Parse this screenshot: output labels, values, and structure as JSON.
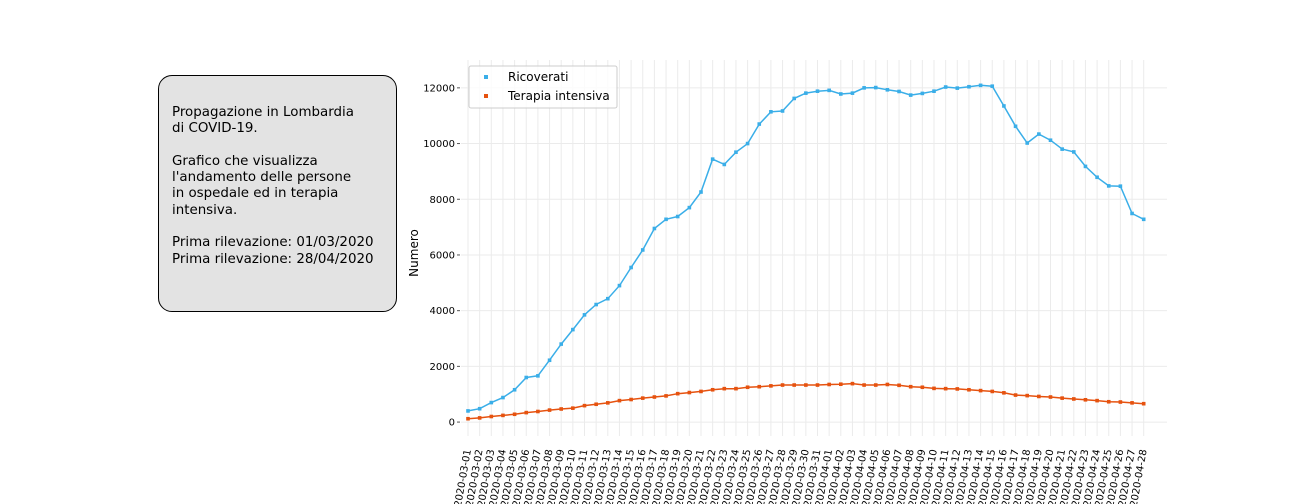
{
  "info": {
    "title": "Propagazione in Lombardia\ndi COVID-19.",
    "description": "Grafico che visualizza\nl'andamento delle persone\nin ospedale ed in terapia\nintensiva.",
    "first_survey": "Prima rilevazione: 01/03/2020",
    "last_survey": "Prima rilevazione: 28/04/2020"
  },
  "chart_data": {
    "type": "line",
    "ylabel": "Numero",
    "xlabel": "",
    "ylim": [
      -500,
      13000
    ],
    "yticks": [
      0,
      2000,
      4000,
      6000,
      8000,
      10000,
      12000
    ],
    "grid": "vertical",
    "legend_position": "top-left",
    "x": [
      "2020-03-01",
      "2020-03-02",
      "2020-03-03",
      "2020-03-04",
      "2020-03-05",
      "2020-03-06",
      "2020-03-07",
      "2020-03-08",
      "2020-03-09",
      "2020-03-10",
      "2020-03-11",
      "2020-03-12",
      "2020-03-13",
      "2020-03-14",
      "2020-03-15",
      "2020-03-16",
      "2020-03-17",
      "2020-03-18",
      "2020-03-19",
      "2020-03-20",
      "2020-03-21",
      "2020-03-22",
      "2020-03-23",
      "2020-03-24",
      "2020-03-25",
      "2020-03-26",
      "2020-03-27",
      "2020-03-28",
      "2020-03-29",
      "2020-03-30",
      "2020-03-31",
      "2020-04-01",
      "2020-04-02",
      "2020-04-03",
      "2020-04-04",
      "2020-04-05",
      "2020-04-06",
      "2020-04-07",
      "2020-04-08",
      "2020-04-09",
      "2020-04-10",
      "2020-04-11",
      "2020-04-12",
      "2020-04-13",
      "2020-04-14",
      "2020-04-15",
      "2020-04-16",
      "2020-04-17",
      "2020-04-18",
      "2020-04-19",
      "2020-04-20",
      "2020-04-21",
      "2020-04-22",
      "2020-04-23",
      "2020-04-24",
      "2020-04-25",
      "2020-04-26",
      "2020-04-27",
      "2020-04-28"
    ],
    "series": [
      {
        "name": "Ricoverati",
        "color": "#3aaee8",
        "values": [
          400,
          480,
          700,
          880,
          1160,
          1600,
          1660,
          2220,
          2800,
          3320,
          3850,
          4220,
          4430,
          4900,
          5550,
          6180,
          6950,
          7280,
          7380,
          7700,
          8260,
          9440,
          9250,
          9690,
          10000,
          10700,
          11140,
          11170,
          11620,
          11810,
          11880,
          11910,
          11780,
          11810,
          12000,
          12010,
          11930,
          11870,
          11740,
          11800,
          11880,
          12030,
          11990,
          12040,
          12090,
          12060,
          11350,
          10620,
          10020,
          10340,
          10120,
          9800,
          9700,
          9180,
          8790,
          8480,
          8470,
          7490,
          7280
        ]
      },
      {
        "name": "Terapia intensiva",
        "color": "#e6520f",
        "values": [
          120,
          150,
          200,
          240,
          280,
          340,
          380,
          430,
          470,
          500,
          590,
          640,
          690,
          770,
          810,
          860,
          900,
          940,
          1020,
          1060,
          1100,
          1160,
          1200,
          1200,
          1250,
          1270,
          1300,
          1330,
          1330,
          1330,
          1330,
          1350,
          1360,
          1380,
          1330,
          1330,
          1350,
          1320,
          1270,
          1250,
          1210,
          1200,
          1190,
          1160,
          1130,
          1100,
          1050,
          970,
          950,
          920,
          900,
          860,
          830,
          800,
          770,
          730,
          720,
          690,
          660
        ]
      }
    ]
  }
}
